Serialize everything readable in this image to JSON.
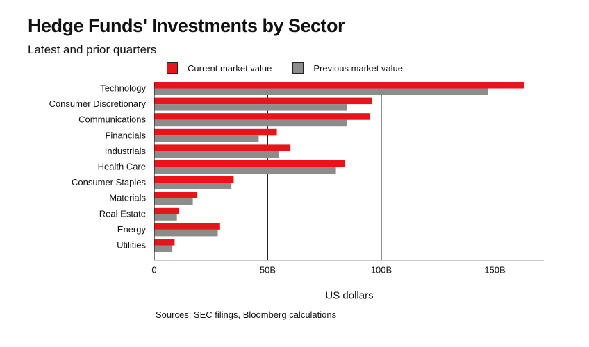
{
  "chart_data": {
    "type": "bar",
    "orientation": "horizontal",
    "title": "Hedge Funds' Investments by Sector",
    "subtitle": "Latest and prior quarters",
    "categories": [
      "Technology",
      "Consumer Discretionary",
      "Communications",
      "Financials",
      "Industrials",
      "Health Care",
      "Consumer Staples",
      "Materials",
      "Real Estate",
      "Energy",
      "Utilities"
    ],
    "series": [
      {
        "name": "Current market value",
        "color": "#e8141b",
        "values": [
          163,
          96,
          95,
          54,
          60,
          84,
          35,
          19,
          11,
          29,
          9
        ]
      },
      {
        "name": "Previous market value",
        "color": "#8c8c8c",
        "values": [
          147,
          85,
          85,
          46,
          55,
          80,
          34,
          17,
          10,
          28,
          8
        ]
      }
    ],
    "xticks": [
      0,
      50,
      100,
      150
    ],
    "xtick_labels": [
      "0",
      "50B",
      "100B",
      "150B"
    ],
    "xlim": [
      0,
      172
    ],
    "xlabel": "US dollars",
    "grid": "vertical",
    "legend": "top",
    "source": "Sources: SEC filings, Bloomberg calculations"
  }
}
